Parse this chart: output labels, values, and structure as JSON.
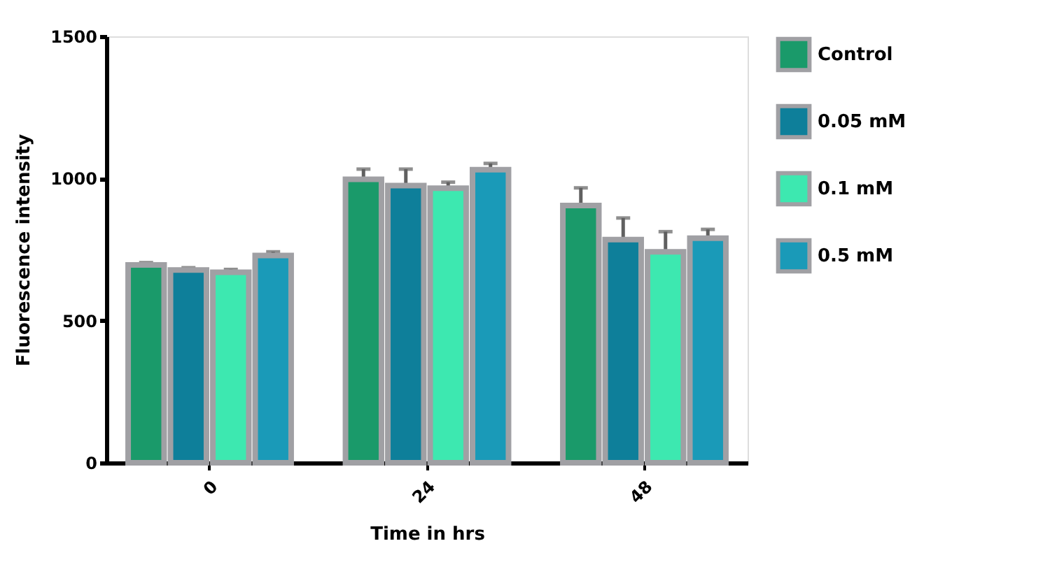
{
  "chart_data": {
    "type": "bar",
    "xlabel": "Time in hrs",
    "ylabel": "Fluorescence intensity",
    "categories": [
      "0",
      "24",
      "48"
    ],
    "series": [
      {
        "name": "Control",
        "color": "#1a9a6a",
        "values": [
          696,
          997,
          905
        ],
        "errors": [
          8,
          36,
          62
        ]
      },
      {
        "name": "0.05 mM",
        "color": "#0e7f9a",
        "values": [
          678,
          975,
          785
        ],
        "errors": [
          8,
          58,
          76
        ]
      },
      {
        "name": "0.1 mM",
        "color": "#3de8b0",
        "values": [
          670,
          966,
          742
        ],
        "errors": [
          10,
          21,
          71
        ]
      },
      {
        "name": "0.5 mM",
        "color": "#1a9ab8",
        "values": [
          729,
          1031,
          790
        ],
        "errors": [
          13,
          22,
          31
        ]
      }
    ],
    "ylim": [
      0,
      1500
    ],
    "yticks": [
      0,
      500,
      1000,
      1500
    ],
    "grid": false,
    "legend": "top right"
  }
}
